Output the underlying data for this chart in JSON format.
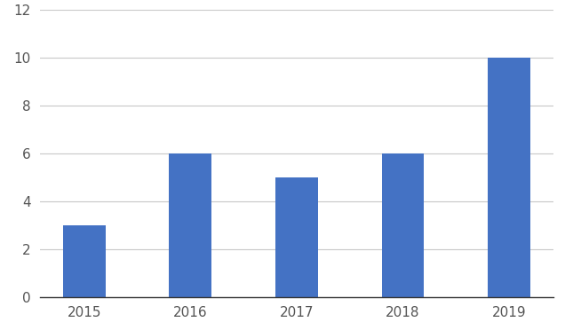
{
  "categories": [
    "2015",
    "2016",
    "2017",
    "2018",
    "2019"
  ],
  "values": [
    3,
    6,
    5,
    6,
    10
  ],
  "bar_color": "#4472C4",
  "ylim": [
    0,
    12
  ],
  "yticks": [
    0,
    2,
    4,
    6,
    8,
    10,
    12
  ],
  "background_color": "#ffffff",
  "grid_color": "#c8c8c8",
  "bar_width": 0.4,
  "tick_fontsize": 11,
  "tick_color": "#555555"
}
